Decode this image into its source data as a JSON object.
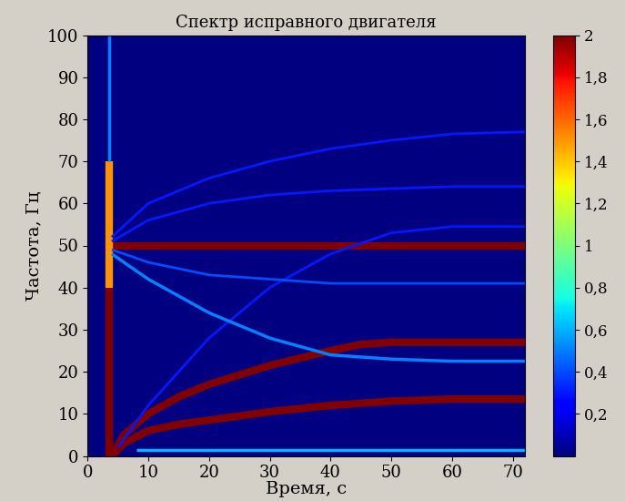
{
  "chart_data": {
    "type": "spectrogram",
    "title": "Спектр исправного двигателя",
    "x_label": "Время, с",
    "y_label": "Частота, Гц",
    "xlim": [
      0,
      72
    ],
    "xticks": [
      0,
      10,
      20,
      30,
      40,
      50,
      60,
      70
    ],
    "ylim": [
      0,
      100
    ],
    "yticks": [
      0,
      10,
      20,
      30,
      40,
      50,
      60,
      70,
      80,
      90,
      100
    ],
    "colorbar_range": [
      0,
      2
    ],
    "colorbar_ticks": [
      {
        "value": 0.2,
        "label": "0,2"
      },
      {
        "value": 0.4,
        "label": "0,4"
      },
      {
        "value": 0.6,
        "label": "0,6"
      },
      {
        "value": 0.8,
        "label": "0,8"
      },
      1,
      {
        "value": 1.2,
        "label": "1,2"
      },
      {
        "value": 1.4,
        "label": "1,4"
      },
      {
        "value": 1.6,
        "label": "1,6"
      },
      {
        "value": 1.8,
        "label": "1,8"
      },
      2
    ],
    "ridges": [
      {
        "x": [
          3,
          72
        ],
        "values": [
          50,
          50
        ],
        "level": 2
      },
      {
        "x": [
          3.5,
          3.5
        ],
        "values": [
          0,
          40
        ],
        "level": 2
      },
      {
        "x": [
          3.5,
          3.5
        ],
        "values": [
          40,
          70
        ],
        "level": 1.5
      },
      {
        "x": [
          3.5,
          3.5
        ],
        "values": [
          70,
          100
        ],
        "level": 0.5
      },
      {
        "x": [
          4,
          6,
          10,
          15,
          20,
          30,
          40,
          50,
          60,
          72
        ],
        "values": [
          0,
          3,
          6,
          7.5,
          8.5,
          10.5,
          12,
          13,
          13.5,
          13.5
        ],
        "level": 2
      },
      {
        "x": [
          4,
          6,
          10,
          15,
          20,
          30,
          40,
          45,
          50,
          60,
          72
        ],
        "values": [
          0,
          5,
          10,
          14,
          17,
          21.5,
          25,
          26.5,
          27,
          27,
          27
        ],
        "level": 2
      },
      {
        "x": [
          4,
          10,
          20,
          30,
          40,
          50,
          60,
          72
        ],
        "values": [
          52,
          60,
          66,
          70,
          73,
          75,
          76.5,
          77
        ],
        "level": 0.3
      },
      {
        "x": [
          4,
          10,
          20,
          30,
          40,
          50,
          60,
          72
        ],
        "values": [
          51,
          56,
          60,
          62,
          63,
          63.5,
          64,
          64
        ],
        "level": 0.3
      },
      {
        "x": [
          5,
          10,
          20,
          30,
          40,
          50,
          60,
          72
        ],
        "values": [
          2,
          12,
          28,
          40,
          48,
          53,
          54.5,
          54.5
        ],
        "level": 0.3
      },
      {
        "x": [
          4,
          10,
          20,
          30,
          40,
          50,
          60,
          72
        ],
        "values": [
          48,
          42,
          34,
          28,
          24,
          23,
          22.5,
          22.5
        ],
        "level": 0.5
      },
      {
        "x": [
          4,
          10,
          20,
          30,
          40,
          50,
          72
        ],
        "values": [
          49,
          46,
          43,
          42,
          41,
          41,
          41
        ],
        "level": 0.4
      },
      {
        "x": [
          8,
          72
        ],
        "values": [
          1.5,
          1.5
        ],
        "level": 0.6
      }
    ]
  }
}
